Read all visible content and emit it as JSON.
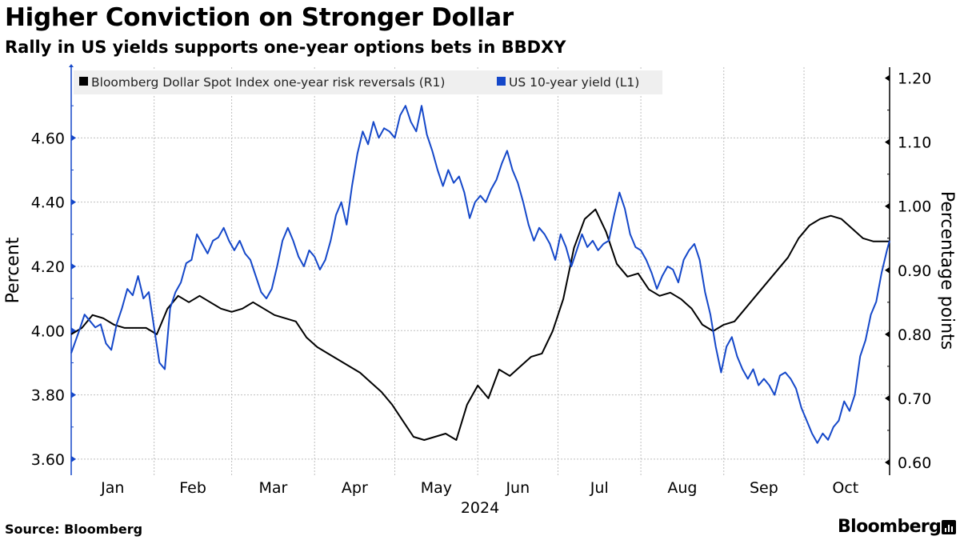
{
  "header": {
    "title": "Higher Conviction on Stronger Dollar",
    "subtitle": "Rally in US yields supports one-year options bets in BBDXY"
  },
  "footer": {
    "source": "Source: Bloomberg",
    "brand": "Bloomberg"
  },
  "chart_data": {
    "type": "line",
    "title": "Higher Conviction on Stronger Dollar",
    "subtitle": "Rally in US yields supports one-year options bets in BBDXY",
    "x_axis": {
      "label": "2024",
      "months": [
        "Jan",
        "Feb",
        "Mar",
        "Apr",
        "May",
        "Jun",
        "Jul",
        "Aug",
        "Sep",
        "Oct"
      ],
      "domain_days": [
        0,
        306
      ]
    },
    "y_left": {
      "label": "Percent",
      "ticks": [
        "4.60",
        "4.40",
        "4.20",
        "4.00",
        "3.80",
        "3.60"
      ],
      "range": [
        3.55,
        4.82
      ]
    },
    "y_right": {
      "label": "Percentage points",
      "ticks": [
        "1.20",
        "1.10",
        "1.00",
        "0.90",
        "0.80",
        "0.70",
        "0.60"
      ],
      "range": [
        0.58,
        1.217
      ]
    },
    "legend": {
      "position": "top-left"
    },
    "colors": {
      "yield": "#1447c9",
      "rr": "#000000",
      "grid": "#bfbfbf"
    },
    "series": [
      {
        "name": "Bloomberg Dollar Spot Index one-year risk reversals (R1)",
        "axis": "right",
        "color": "#000000",
        "points": [
          [
            0,
            0.8
          ],
          [
            4,
            0.81
          ],
          [
            8,
            0.83
          ],
          [
            12,
            0.825
          ],
          [
            16,
            0.815
          ],
          [
            20,
            0.81
          ],
          [
            24,
            0.81
          ],
          [
            28,
            0.81
          ],
          [
            32,
            0.8
          ],
          [
            36,
            0.84
          ],
          [
            40,
            0.86
          ],
          [
            44,
            0.85
          ],
          [
            48,
            0.86
          ],
          [
            52,
            0.85
          ],
          [
            56,
            0.84
          ],
          [
            60,
            0.835
          ],
          [
            64,
            0.84
          ],
          [
            68,
            0.85
          ],
          [
            72,
            0.84
          ],
          [
            76,
            0.83
          ],
          [
            80,
            0.825
          ],
          [
            84,
            0.82
          ],
          [
            88,
            0.795
          ],
          [
            92,
            0.78
          ],
          [
            96,
            0.77
          ],
          [
            100,
            0.76
          ],
          [
            104,
            0.75
          ],
          [
            108,
            0.74
          ],
          [
            112,
            0.725
          ],
          [
            116,
            0.71
          ],
          [
            120,
            0.69
          ],
          [
            124,
            0.665
          ],
          [
            128,
            0.64
          ],
          [
            132,
            0.635
          ],
          [
            136,
            0.64
          ],
          [
            140,
            0.645
          ],
          [
            144,
            0.635
          ],
          [
            148,
            0.69
          ],
          [
            152,
            0.72
          ],
          [
            156,
            0.7
          ],
          [
            160,
            0.745
          ],
          [
            164,
            0.735
          ],
          [
            168,
            0.75
          ],
          [
            172,
            0.765
          ],
          [
            176,
            0.77
          ],
          [
            180,
            0.805
          ],
          [
            184,
            0.855
          ],
          [
            188,
            0.935
          ],
          [
            192,
            0.98
          ],
          [
            196,
            0.995
          ],
          [
            200,
            0.96
          ],
          [
            204,
            0.91
          ],
          [
            208,
            0.89
          ],
          [
            212,
            0.895
          ],
          [
            216,
            0.87
          ],
          [
            220,
            0.86
          ],
          [
            224,
            0.865
          ],
          [
            228,
            0.855
          ],
          [
            232,
            0.84
          ],
          [
            236,
            0.815
          ],
          [
            240,
            0.805
          ],
          [
            244,
            0.815
          ],
          [
            248,
            0.82
          ],
          [
            252,
            0.84
          ],
          [
            256,
            0.86
          ],
          [
            260,
            0.88
          ],
          [
            264,
            0.9
          ],
          [
            268,
            0.92
          ],
          [
            272,
            0.95
          ],
          [
            276,
            0.97
          ],
          [
            280,
            0.98
          ],
          [
            284,
            0.985
          ],
          [
            288,
            0.98
          ],
          [
            292,
            0.965
          ],
          [
            296,
            0.95
          ],
          [
            300,
            0.945
          ],
          [
            306,
            0.945
          ]
        ]
      },
      {
        "name": "US 10-year yield (L1)",
        "axis": "left",
        "color": "#1447c9",
        "points": [
          [
            0,
            3.93
          ],
          [
            3,
            4.0
          ],
          [
            5,
            4.05
          ],
          [
            7,
            4.03
          ],
          [
            9,
            4.01
          ],
          [
            11,
            4.02
          ],
          [
            13,
            3.96
          ],
          [
            15,
            3.94
          ],
          [
            17,
            4.02
          ],
          [
            19,
            4.07
          ],
          [
            21,
            4.13
          ],
          [
            23,
            4.11
          ],
          [
            25,
            4.17
          ],
          [
            27,
            4.1
          ],
          [
            29,
            4.12
          ],
          [
            31,
            4.01
          ],
          [
            33,
            3.9
          ],
          [
            35,
            3.88
          ],
          [
            37,
            4.07
          ],
          [
            39,
            4.12
          ],
          [
            41,
            4.15
          ],
          [
            43,
            4.21
          ],
          [
            45,
            4.22
          ],
          [
            47,
            4.3
          ],
          [
            49,
            4.27
          ],
          [
            51,
            4.24
          ],
          [
            53,
            4.28
          ],
          [
            55,
            4.29
          ],
          [
            57,
            4.32
          ],
          [
            59,
            4.28
          ],
          [
            61,
            4.25
          ],
          [
            63,
            4.28
          ],
          [
            65,
            4.24
          ],
          [
            67,
            4.22
          ],
          [
            69,
            4.17
          ],
          [
            71,
            4.12
          ],
          [
            73,
            4.1
          ],
          [
            75,
            4.13
          ],
          [
            77,
            4.2
          ],
          [
            79,
            4.28
          ],
          [
            81,
            4.32
          ],
          [
            83,
            4.28
          ],
          [
            85,
            4.23
          ],
          [
            87,
            4.2
          ],
          [
            89,
            4.25
          ],
          [
            91,
            4.23
          ],
          [
            93,
            4.19
          ],
          [
            95,
            4.22
          ],
          [
            97,
            4.28
          ],
          [
            99,
            4.36
          ],
          [
            101,
            4.4
          ],
          [
            103,
            4.33
          ],
          [
            105,
            4.45
          ],
          [
            107,
            4.55
          ],
          [
            109,
            4.62
          ],
          [
            111,
            4.58
          ],
          [
            113,
            4.65
          ],
          [
            115,
            4.6
          ],
          [
            117,
            4.63
          ],
          [
            119,
            4.62
          ],
          [
            121,
            4.6
          ],
          [
            123,
            4.67
          ],
          [
            125,
            4.7
          ],
          [
            127,
            4.65
          ],
          [
            129,
            4.62
          ],
          [
            131,
            4.7
          ],
          [
            133,
            4.61
          ],
          [
            135,
            4.56
          ],
          [
            137,
            4.5
          ],
          [
            139,
            4.45
          ],
          [
            141,
            4.5
          ],
          [
            143,
            4.46
          ],
          [
            145,
            4.48
          ],
          [
            147,
            4.43
          ],
          [
            149,
            4.35
          ],
          [
            151,
            4.4
          ],
          [
            153,
            4.42
          ],
          [
            155,
            4.4
          ],
          [
            157,
            4.44
          ],
          [
            159,
            4.47
          ],
          [
            161,
            4.52
          ],
          [
            163,
            4.56
          ],
          [
            165,
            4.5
          ],
          [
            167,
            4.46
          ],
          [
            169,
            4.4
          ],
          [
            171,
            4.33
          ],
          [
            173,
            4.28
          ],
          [
            175,
            4.32
          ],
          [
            177,
            4.3
          ],
          [
            179,
            4.27
          ],
          [
            181,
            4.22
          ],
          [
            183,
            4.3
          ],
          [
            185,
            4.26
          ],
          [
            187,
            4.2
          ],
          [
            189,
            4.25
          ],
          [
            191,
            4.3
          ],
          [
            193,
            4.26
          ],
          [
            195,
            4.28
          ],
          [
            197,
            4.25
          ],
          [
            199,
            4.27
          ],
          [
            201,
            4.28
          ],
          [
            203,
            4.36
          ],
          [
            205,
            4.43
          ],
          [
            207,
            4.38
          ],
          [
            209,
            4.3
          ],
          [
            211,
            4.26
          ],
          [
            213,
            4.25
          ],
          [
            215,
            4.22
          ],
          [
            217,
            4.18
          ],
          [
            219,
            4.13
          ],
          [
            221,
            4.17
          ],
          [
            223,
            4.2
          ],
          [
            225,
            4.19
          ],
          [
            227,
            4.15
          ],
          [
            229,
            4.22
          ],
          [
            231,
            4.25
          ],
          [
            233,
            4.27
          ],
          [
            235,
            4.22
          ],
          [
            237,
            4.12
          ],
          [
            239,
            4.05
          ],
          [
            241,
            3.95
          ],
          [
            243,
            3.87
          ],
          [
            245,
            3.95
          ],
          [
            247,
            3.98
          ],
          [
            249,
            3.92
          ],
          [
            251,
            3.88
          ],
          [
            253,
            3.85
          ],
          [
            255,
            3.88
          ],
          [
            257,
            3.83
          ],
          [
            259,
            3.85
          ],
          [
            261,
            3.83
          ],
          [
            263,
            3.8
          ],
          [
            265,
            3.86
          ],
          [
            267,
            3.87
          ],
          [
            269,
            3.85
          ],
          [
            271,
            3.82
          ],
          [
            273,
            3.76
          ],
          [
            275,
            3.72
          ],
          [
            277,
            3.68
          ],
          [
            279,
            3.65
          ],
          [
            281,
            3.68
          ],
          [
            283,
            3.66
          ],
          [
            285,
            3.7
          ],
          [
            287,
            3.72
          ],
          [
            289,
            3.78
          ],
          [
            291,
            3.75
          ],
          [
            293,
            3.8
          ],
          [
            295,
            3.92
          ],
          [
            297,
            3.97
          ],
          [
            299,
            4.05
          ],
          [
            301,
            4.09
          ],
          [
            303,
            4.18
          ],
          [
            305,
            4.25
          ],
          [
            306,
            4.28
          ]
        ]
      }
    ]
  }
}
